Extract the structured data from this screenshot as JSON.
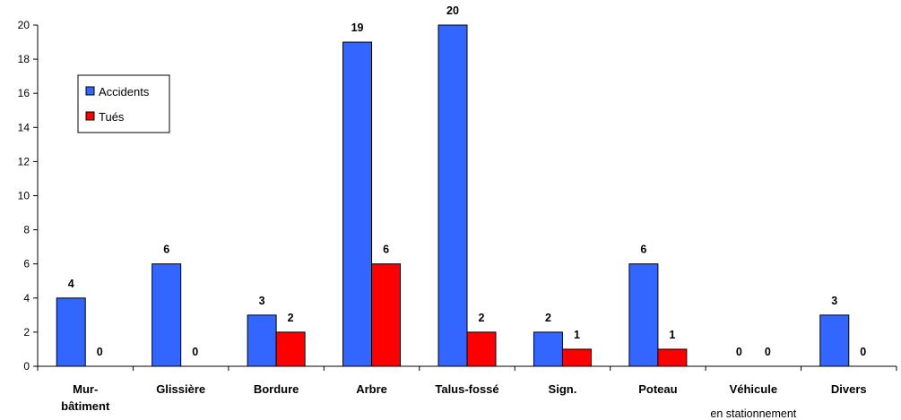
{
  "chart_data": {
    "type": "bar",
    "categories": [
      {
        "line1": "Mur-",
        "line2": "bâtiment",
        "line2_bold": true
      },
      {
        "line1": "Glissière",
        "line2": ""
      },
      {
        "line1": "Bordure",
        "line2": ""
      },
      {
        "line1": "Arbre",
        "line2": ""
      },
      {
        "line1": "Talus-fossé",
        "line2": ""
      },
      {
        "line1": "Sign.",
        "line2": ""
      },
      {
        "line1": "Poteau",
        "line2": ""
      },
      {
        "line1": "Véhicule",
        "line2": "en stationnement",
        "line2_bold": false
      },
      {
        "line1": "Divers",
        "line2": ""
      }
    ],
    "series": [
      {
        "name": "Accidents",
        "color": "#3366ff",
        "values": [
          4,
          6,
          3,
          19,
          20,
          2,
          6,
          0,
          3
        ]
      },
      {
        "name": "Tués",
        "color": "#ff0000",
        "values": [
          0,
          0,
          2,
          6,
          2,
          1,
          1,
          0,
          0
        ]
      }
    ],
    "yticks": [
      "0",
      "2",
      "4",
      "6",
      "8",
      "10",
      "12",
      "14",
      "16",
      "18",
      "20"
    ],
    "ylim": [
      0,
      20
    ],
    "grid": false,
    "legend_position": "top-left",
    "title": "",
    "xlabel": "",
    "ylabel": ""
  }
}
